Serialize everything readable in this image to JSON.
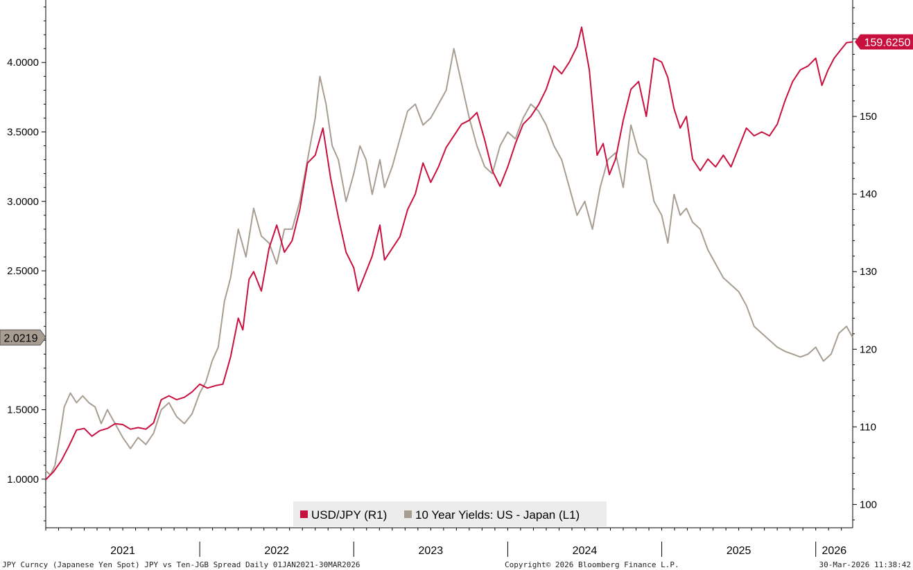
{
  "footer": {
    "source": "JPY Curncy (Japanese Yen Spot) JPY vs Ten-JGB Spread Daily 01JAN2021-30MAR2026",
    "copyright": "Copyright© 2026 Bloomberg Finance L.P.",
    "timestamp": "30-Mar-2026 11:38:42"
  },
  "chart_data": {
    "type": "line",
    "title": "",
    "x_labels": [
      "2021",
      "2022",
      "2023",
      "2024",
      "2025",
      "2026"
    ],
    "x_range": [
      2021.0,
      2026.24
    ],
    "legend_position": "bottom-center",
    "grid": false,
    "y_axes": {
      "L1": {
        "side": "left",
        "range": [
          0.65,
          4.45
        ],
        "ticks": [
          "1.0000",
          "1.5000",
          "2.5000",
          "3.0000",
          "3.5000",
          "4.0000"
        ]
      },
      "R1": {
        "side": "right",
        "range": [
          97,
          165
        ],
        "ticks": [
          "100",
          "110",
          "120",
          "130",
          "140",
          "150"
        ]
      }
    },
    "series": [
      {
        "name": "USD/JPY (R1)",
        "axis": "R1",
        "color": "#c8103e",
        "last_value": "159.6250",
        "points": [
          [
            2021.0,
            103.2
          ],
          [
            2021.05,
            104.2
          ],
          [
            2021.1,
            105.6
          ],
          [
            2021.15,
            107.5
          ],
          [
            2021.2,
            109.6
          ],
          [
            2021.25,
            109.8
          ],
          [
            2021.3,
            108.8
          ],
          [
            2021.35,
            109.5
          ],
          [
            2021.4,
            109.8
          ],
          [
            2021.45,
            110.4
          ],
          [
            2021.5,
            110.3
          ],
          [
            2021.55,
            109.7
          ],
          [
            2021.6,
            109.9
          ],
          [
            2021.65,
            109.7
          ],
          [
            2021.7,
            110.5
          ],
          [
            2021.75,
            113.5
          ],
          [
            2021.8,
            114.0
          ],
          [
            2021.85,
            113.5
          ],
          [
            2021.9,
            113.8
          ],
          [
            2021.95,
            114.5
          ],
          [
            2022.0,
            115.5
          ],
          [
            2022.05,
            115.0
          ],
          [
            2022.1,
            115.3
          ],
          [
            2022.15,
            115.5
          ],
          [
            2022.2,
            119.0
          ],
          [
            2022.25,
            124.0
          ],
          [
            2022.28,
            122.5
          ],
          [
            2022.32,
            129.0
          ],
          [
            2022.35,
            130.0
          ],
          [
            2022.4,
            127.5
          ],
          [
            2022.45,
            133.0
          ],
          [
            2022.5,
            136.0
          ],
          [
            2022.55,
            132.5
          ],
          [
            2022.6,
            134.0
          ],
          [
            2022.65,
            138.0
          ],
          [
            2022.7,
            144.0
          ],
          [
            2022.75,
            145.0
          ],
          [
            2022.8,
            148.5
          ],
          [
            2022.85,
            142.0
          ],
          [
            2022.9,
            137.0
          ],
          [
            2022.95,
            132.5
          ],
          [
            2023.0,
            130.5
          ],
          [
            2023.03,
            127.5
          ],
          [
            2023.08,
            130.0
          ],
          [
            2023.12,
            132.0
          ],
          [
            2023.17,
            136.0
          ],
          [
            2023.2,
            131.5
          ],
          [
            2023.25,
            133.0
          ],
          [
            2023.3,
            134.5
          ],
          [
            2023.35,
            138.0
          ],
          [
            2023.4,
            140.0
          ],
          [
            2023.45,
            144.0
          ],
          [
            2023.5,
            141.5
          ],
          [
            2023.55,
            143.5
          ],
          [
            2023.6,
            146.0
          ],
          [
            2023.65,
            147.5
          ],
          [
            2023.7,
            149.0
          ],
          [
            2023.75,
            149.5
          ],
          [
            2023.8,
            150.5
          ],
          [
            2023.85,
            147.0
          ],
          [
            2023.9,
            143.0
          ],
          [
            2023.95,
            141.0
          ],
          [
            2024.0,
            143.5
          ],
          [
            2024.05,
            146.5
          ],
          [
            2024.1,
            149.0
          ],
          [
            2024.15,
            150.0
          ],
          [
            2024.2,
            151.5
          ],
          [
            2024.25,
            153.5
          ],
          [
            2024.3,
            156.5
          ],
          [
            2024.35,
            155.5
          ],
          [
            2024.4,
            157.0
          ],
          [
            2024.45,
            159.0
          ],
          [
            2024.48,
            161.5
          ],
          [
            2024.53,
            156.0
          ],
          [
            2024.58,
            145.0
          ],
          [
            2024.62,
            146.5
          ],
          [
            2024.66,
            142.5
          ],
          [
            2024.7,
            144.5
          ],
          [
            2024.75,
            149.5
          ],
          [
            2024.8,
            153.5
          ],
          [
            2024.85,
            154.5
          ],
          [
            2024.9,
            150.0
          ],
          [
            2024.95,
            157.5
          ],
          [
            2025.0,
            157.0
          ],
          [
            2025.04,
            155.0
          ],
          [
            2025.08,
            151.0
          ],
          [
            2025.12,
            148.5
          ],
          [
            2025.16,
            150.0
          ],
          [
            2025.2,
            144.5
          ],
          [
            2025.25,
            143.0
          ],
          [
            2025.3,
            144.5
          ],
          [
            2025.35,
            143.5
          ],
          [
            2025.4,
            145.0
          ],
          [
            2025.45,
            143.5
          ],
          [
            2025.5,
            146.0
          ],
          [
            2025.55,
            148.5
          ],
          [
            2025.6,
            147.5
          ],
          [
            2025.65,
            148.0
          ],
          [
            2025.7,
            147.5
          ],
          [
            2025.75,
            149.0
          ],
          [
            2025.8,
            152.0
          ],
          [
            2025.85,
            154.5
          ],
          [
            2025.9,
            156.0
          ],
          [
            2025.95,
            156.5
          ],
          [
            2026.0,
            157.5
          ],
          [
            2026.04,
            154.0
          ],
          [
            2026.08,
            156.0
          ],
          [
            2026.12,
            157.5
          ],
          [
            2026.16,
            158.5
          ],
          [
            2026.2,
            159.5
          ],
          [
            2026.24,
            159.6
          ]
        ]
      },
      {
        "name": "10 Year Yields: US - Japan (L1)",
        "axis": "L1",
        "color": "#a79d91",
        "last_value": "2.0219",
        "points": [
          [
            2021.0,
            1.06
          ],
          [
            2021.03,
            1.03
          ],
          [
            2021.06,
            1.1
          ],
          [
            2021.09,
            1.3
          ],
          [
            2021.12,
            1.52
          ],
          [
            2021.16,
            1.62
          ],
          [
            2021.2,
            1.55
          ],
          [
            2021.24,
            1.6
          ],
          [
            2021.28,
            1.55
          ],
          [
            2021.32,
            1.52
          ],
          [
            2021.36,
            1.4
          ],
          [
            2021.4,
            1.5
          ],
          [
            2021.45,
            1.4
          ],
          [
            2021.5,
            1.3
          ],
          [
            2021.55,
            1.22
          ],
          [
            2021.6,
            1.3
          ],
          [
            2021.65,
            1.25
          ],
          [
            2021.7,
            1.33
          ],
          [
            2021.75,
            1.5
          ],
          [
            2021.8,
            1.55
          ],
          [
            2021.85,
            1.45
          ],
          [
            2021.9,
            1.4
          ],
          [
            2021.95,
            1.47
          ],
          [
            2022.0,
            1.62
          ],
          [
            2022.04,
            1.7
          ],
          [
            2022.08,
            1.85
          ],
          [
            2022.12,
            1.95
          ],
          [
            2022.16,
            2.28
          ],
          [
            2022.2,
            2.45
          ],
          [
            2022.25,
            2.8
          ],
          [
            2022.3,
            2.6
          ],
          [
            2022.35,
            2.95
          ],
          [
            2022.4,
            2.75
          ],
          [
            2022.45,
            2.7
          ],
          [
            2022.5,
            2.55
          ],
          [
            2022.55,
            2.8
          ],
          [
            2022.6,
            2.8
          ],
          [
            2022.65,
            3.0
          ],
          [
            2022.7,
            3.3
          ],
          [
            2022.75,
            3.6
          ],
          [
            2022.78,
            3.9
          ],
          [
            2022.82,
            3.7
          ],
          [
            2022.86,
            3.4
          ],
          [
            2022.9,
            3.3
          ],
          [
            2022.95,
            3.0
          ],
          [
            2023.0,
            3.2
          ],
          [
            2023.04,
            3.4
          ],
          [
            2023.08,
            3.3
          ],
          [
            2023.12,
            3.05
          ],
          [
            2023.17,
            3.3
          ],
          [
            2023.2,
            3.1
          ],
          [
            2023.25,
            3.25
          ],
          [
            2023.3,
            3.45
          ],
          [
            2023.35,
            3.65
          ],
          [
            2023.4,
            3.7
          ],
          [
            2023.45,
            3.55
          ],
          [
            2023.5,
            3.6
          ],
          [
            2023.55,
            3.7
          ],
          [
            2023.6,
            3.8
          ],
          [
            2023.65,
            4.1
          ],
          [
            2023.7,
            3.85
          ],
          [
            2023.75,
            3.6
          ],
          [
            2023.8,
            3.4
          ],
          [
            2023.85,
            3.25
          ],
          [
            2023.9,
            3.2
          ],
          [
            2023.95,
            3.4
          ],
          [
            2024.0,
            3.5
          ],
          [
            2024.05,
            3.45
          ],
          [
            2024.1,
            3.6
          ],
          [
            2024.15,
            3.7
          ],
          [
            2024.2,
            3.65
          ],
          [
            2024.25,
            3.55
          ],
          [
            2024.3,
            3.4
          ],
          [
            2024.35,
            3.3
          ],
          [
            2024.4,
            3.1
          ],
          [
            2024.45,
            2.9
          ],
          [
            2024.5,
            3.0
          ],
          [
            2024.55,
            2.8
          ],
          [
            2024.6,
            3.1
          ],
          [
            2024.65,
            3.3
          ],
          [
            2024.7,
            3.35
          ],
          [
            2024.75,
            3.1
          ],
          [
            2024.8,
            3.55
          ],
          [
            2024.85,
            3.35
          ],
          [
            2024.9,
            3.3
          ],
          [
            2024.95,
            3.0
          ],
          [
            2025.0,
            2.9
          ],
          [
            2025.04,
            2.7
          ],
          [
            2025.08,
            3.05
          ],
          [
            2025.12,
            2.9
          ],
          [
            2025.16,
            2.95
          ],
          [
            2025.2,
            2.85
          ],
          [
            2025.25,
            2.8
          ],
          [
            2025.3,
            2.65
          ],
          [
            2025.35,
            2.55
          ],
          [
            2025.4,
            2.45
          ],
          [
            2025.45,
            2.4
          ],
          [
            2025.5,
            2.35
          ],
          [
            2025.55,
            2.25
          ],
          [
            2025.6,
            2.1
          ],
          [
            2025.65,
            2.05
          ],
          [
            2025.7,
            2.0
          ],
          [
            2025.75,
            1.95
          ],
          [
            2025.8,
            1.92
          ],
          [
            2025.85,
            1.9
          ],
          [
            2025.9,
            1.88
          ],
          [
            2025.95,
            1.9
          ],
          [
            2026.0,
            1.95
          ],
          [
            2026.05,
            1.85
          ],
          [
            2026.1,
            1.9
          ],
          [
            2026.15,
            2.05
          ],
          [
            2026.2,
            2.1
          ],
          [
            2026.24,
            2.02
          ]
        ]
      }
    ]
  }
}
